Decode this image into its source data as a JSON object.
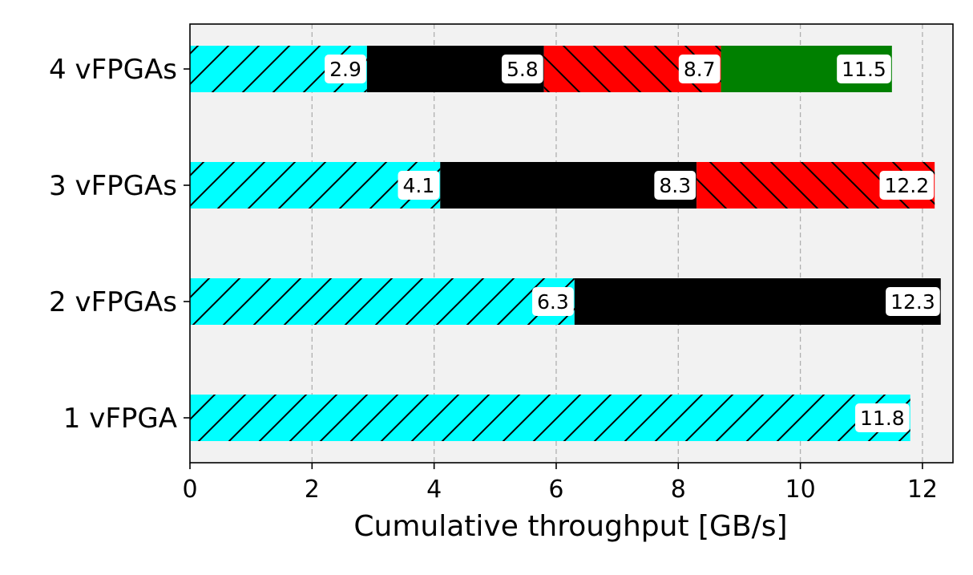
{
  "chart_data": {
    "type": "bar",
    "orientation": "horizontal",
    "stacked": true,
    "title": "",
    "xlabel": "Cumulative throughput [GB/s]",
    "ylabel": "",
    "xlim": [
      0,
      12.5
    ],
    "xticks": [
      0,
      2,
      4,
      6,
      8,
      10,
      12
    ],
    "xtick_labels": [
      "0",
      "2",
      "4",
      "6",
      "8",
      "10",
      "12"
    ],
    "grid": "x-dashed",
    "legend": "none",
    "background_color": "#f2f2f2",
    "categories": [
      "4 vFPGAs",
      "3 vFPGAs",
      "2 vFPGAs",
      "1 vFPGA"
    ],
    "bars": [
      {
        "category": "4 vFPGAs",
        "segments": [
          {
            "start": 0,
            "end": 2.9,
            "label": "2.9",
            "color": "#00ffff",
            "hatch": "forward"
          },
          {
            "start": 2.9,
            "end": 5.8,
            "label": "5.8",
            "color": "#000000",
            "hatch": "none"
          },
          {
            "start": 5.8,
            "end": 8.7,
            "label": "8.7",
            "color": "#ff0000",
            "hatch": "back"
          },
          {
            "start": 8.7,
            "end": 11.5,
            "label": "11.5",
            "color": "#008000",
            "hatch": "none"
          }
        ]
      },
      {
        "category": "3 vFPGAs",
        "segments": [
          {
            "start": 0,
            "end": 4.1,
            "label": "4.1",
            "color": "#00ffff",
            "hatch": "forward"
          },
          {
            "start": 4.1,
            "end": 8.3,
            "label": "8.3",
            "color": "#000000",
            "hatch": "none"
          },
          {
            "start": 8.3,
            "end": 12.2,
            "label": "12.2",
            "color": "#ff0000",
            "hatch": "back"
          }
        ]
      },
      {
        "category": "2 vFPGAs",
        "segments": [
          {
            "start": 0,
            "end": 6.3,
            "label": "6.3",
            "color": "#00ffff",
            "hatch": "forward"
          },
          {
            "start": 6.3,
            "end": 12.3,
            "label": "12.3",
            "color": "#000000",
            "hatch": "none"
          }
        ]
      },
      {
        "category": "1 vFPGA",
        "segments": [
          {
            "start": 0,
            "end": 11.8,
            "label": "11.8",
            "color": "#00ffff",
            "hatch": "forward"
          }
        ]
      }
    ]
  }
}
